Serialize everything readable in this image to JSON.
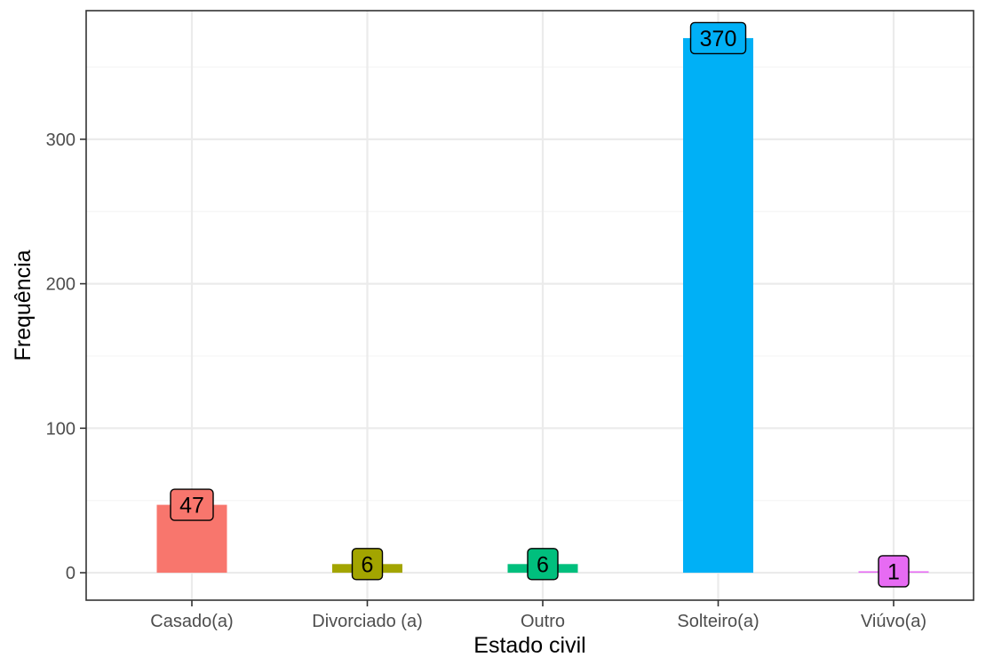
{
  "chart_data": {
    "type": "bar",
    "title": "",
    "xlabel": "Estado civil",
    "ylabel": "Frequência",
    "categories": [
      "Casado(a)",
      "Divorciado (a)",
      "Outro",
      "Solteiro(a)",
      "Viúvo(a)"
    ],
    "values": [
      47,
      6,
      6,
      370,
      1
    ],
    "data_labels": [
      "47",
      "6",
      "6",
      "370",
      "1"
    ],
    "colors": [
      "#F8766D",
      "#A3A500",
      "#00BF7D",
      "#00B0F6",
      "#E76BF3"
    ],
    "yticks": [
      0,
      100,
      200,
      300
    ],
    "ytick_labels": [
      "0",
      "100",
      "200",
      "300"
    ],
    "ylim": [
      -19,
      389
    ],
    "grid": true,
    "legend": "none",
    "panel_border_color": "#333333",
    "grid_major_color": "#ebebeb",
    "grid_minor_color": "#f5f5f5"
  }
}
